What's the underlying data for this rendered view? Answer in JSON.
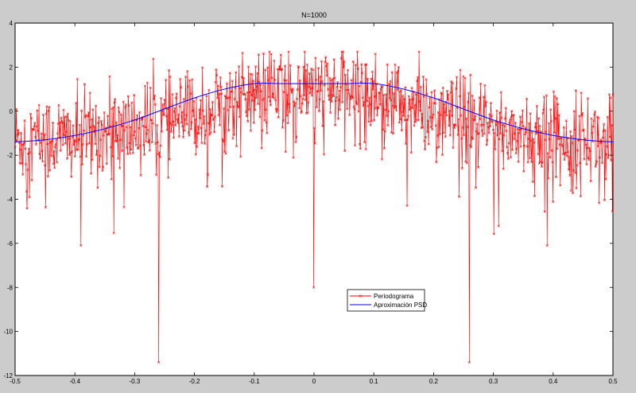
{
  "chart_data": {
    "type": "line",
    "title": "N=1000",
    "xlabel": "",
    "ylabel": "",
    "xlim": [
      -0.5,
      0.5
    ],
    "ylim": [
      -12,
      4
    ],
    "xticks": [
      -0.5,
      -0.4,
      -0.3,
      -0.2,
      -0.1,
      0,
      0.1,
      0.2,
      0.3,
      0.4,
      0.5
    ],
    "xtick_labels": [
      "-0.5",
      "-0.4",
      "-0.3",
      "-0.2",
      "-0.1",
      "0",
      "0.1",
      "0.2",
      "0.3",
      "0.4",
      "0.5"
    ],
    "yticks": [
      4,
      2,
      0,
      -2,
      -4,
      -6,
      -8,
      -10,
      -12
    ],
    "ytick_labels": [
      "4",
      "2",
      "0",
      "-2",
      "-4",
      "-6",
      "-8",
      "-10",
      "-12"
    ],
    "grid": false,
    "legend_position": "bottom-center",
    "series": [
      {
        "name": "Periodograma",
        "color": "#ff0000",
        "marker": "x",
        "x_range": [
          -0.5,
          0.5
        ],
        "n_points": 1000,
        "approx_envelope_mean": [
          [
            -0.5,
            -1.3
          ],
          [
            -0.4,
            -1.2
          ],
          [
            -0.3,
            -0.8
          ],
          [
            -0.2,
            -0.2
          ],
          [
            -0.1,
            0.8
          ],
          [
            0,
            0.9
          ],
          [
            0.1,
            0.8
          ],
          [
            0.2,
            -0.2
          ],
          [
            0.3,
            -0.8
          ],
          [
            0.4,
            -1.2
          ],
          [
            0.5,
            -1.3
          ]
        ],
        "notable_points": [
          {
            "x": -0.26,
            "y": -11.4
          },
          {
            "x": 0.26,
            "y": -11.4
          },
          {
            "x": 0.0,
            "y": -8.0
          },
          {
            "x": -0.39,
            "y": -6.1
          },
          {
            "x": 0.39,
            "y": -6.1
          }
        ]
      },
      {
        "name": "Aproximación PSD",
        "color": "#0000ff",
        "x": [
          -0.5,
          -0.45,
          -0.4,
          -0.35,
          -0.3,
          -0.25,
          -0.2,
          -0.15,
          -0.1,
          -0.05,
          0,
          0.05,
          0.1,
          0.15,
          0.2,
          0.25,
          0.3,
          0.35,
          0.4,
          0.45,
          0.5
        ],
        "values": [
          -1.4,
          -1.3,
          -1.1,
          -0.8,
          -0.4,
          0.1,
          0.6,
          1.0,
          1.25,
          1.25,
          1.25,
          1.25,
          1.25,
          1.0,
          0.6,
          0.1,
          -0.4,
          -0.8,
          -1.1,
          -1.3,
          -1.4
        ]
      }
    ]
  }
}
